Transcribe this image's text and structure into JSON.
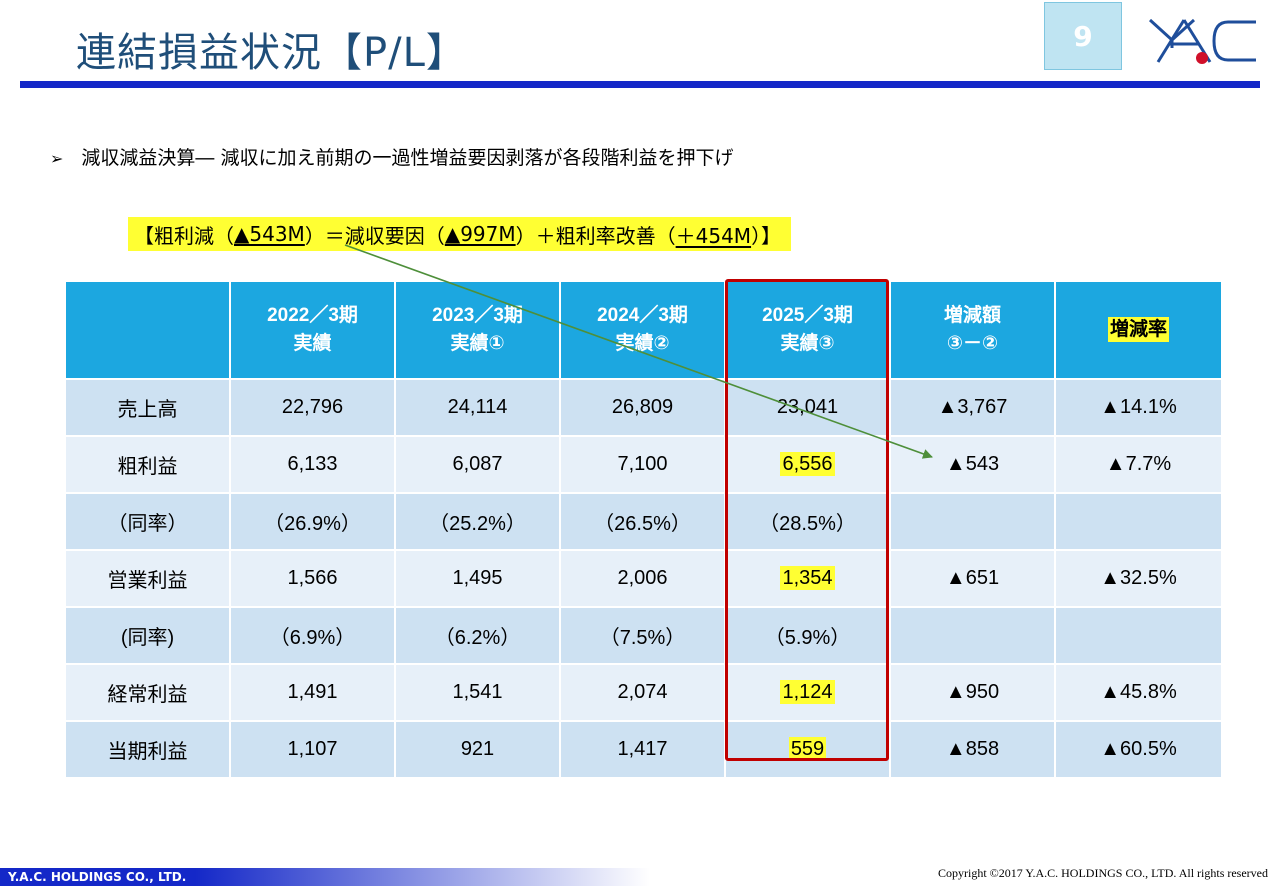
{
  "header": {
    "title": "連結損益状況【P/L】",
    "page_number": "9"
  },
  "bullet": {
    "marker": "➢",
    "text": "減収減益決算― 減収に加え前期の一過性増益要因剥落が各段階利益を押下げ"
  },
  "callout": {
    "p1": "【粗利減（",
    "u1": "▲543M",
    "p2": "）＝減収要因（",
    "u2": "▲997M",
    "p3": "）＋粗利率改善（",
    "u3": "＋454M",
    "p4": "）】"
  },
  "table": {
    "columns": [
      {
        "line1": "2022／3期",
        "line2": "実績"
      },
      {
        "line1": "2023／3期",
        "line2": "実績①"
      },
      {
        "line1": "2024／3期",
        "line2": "実績②"
      },
      {
        "line1": "2025／3期",
        "line2": "実績③"
      },
      {
        "line1": "増減額",
        "line2": "③－②"
      },
      {
        "line1": "増減率",
        "line2": ""
      }
    ],
    "rows": [
      {
        "label": "売上高",
        "cells": [
          "22,796",
          "24,114",
          "26,809",
          "23,041",
          "▲3,767",
          "▲14.1%"
        ]
      },
      {
        "label": "粗利益",
        "cells": [
          "6,133",
          "6,087",
          "7,100",
          "6,556",
          "▲543",
          "▲7.7%"
        ]
      },
      {
        "label": "（同率）",
        "cells": [
          "（26.9%）",
          "（25.2%）",
          "（26.5%）",
          "（28.5%）",
          "",
          ""
        ]
      },
      {
        "label": "営業利益",
        "cells": [
          "1,566",
          "1,495",
          "2,006",
          "1,354",
          "▲651",
          "▲32.5%"
        ]
      },
      {
        "label": "(同率)",
        "cells": [
          "（6.9%）",
          "（6.2%）",
          "（7.5%）",
          "（5.9%）",
          "",
          ""
        ]
      },
      {
        "label": "経常利益",
        "cells": [
          "1,491",
          "1,541",
          "2,074",
          "1,124",
          "▲950",
          "▲45.8%"
        ]
      },
      {
        "label": "当期利益",
        "cells": [
          "1,107",
          "921",
          "1,417",
          "559",
          "▲858",
          "▲60.5%"
        ]
      }
    ]
  },
  "footer": {
    "company": "Y.A.C. HOLDINGS CO., LTD.",
    "copyright": "Copyright ©2017 Y.A.C. HOLDINGS CO., LTD.  All rights reserved"
  },
  "colors": {
    "title": "#1F4E79",
    "rule": "#1428C8",
    "header_fill": "#1CA7E0",
    "row_dark": "#CDE1F2",
    "row_light": "#E7F0F9",
    "highlight": "#FFFF33",
    "emphasis_box": "#C00000",
    "arrow": "#4E8F3A"
  }
}
